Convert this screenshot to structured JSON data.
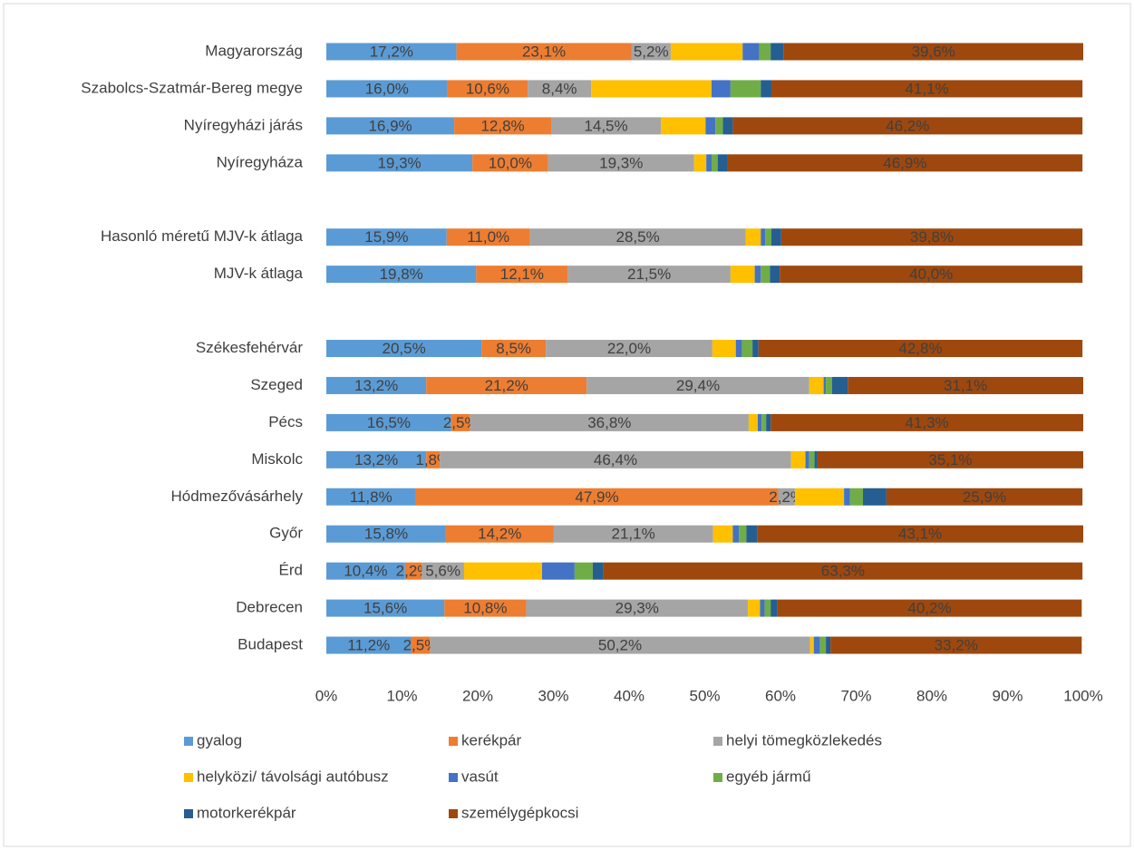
{
  "chart_data": {
    "type": "stacked_barh",
    "categories": [
      "Magyarország",
      "Szabolcs-Szatmár-Bereg megye",
      "Nyíregyházi járás",
      "Nyíregyháza",
      null,
      "Hasonló méretű MJV-k átlaga",
      "MJV-k átlaga",
      null,
      "Székesfehérvár",
      "Szeged",
      "Pécs",
      "Miskolc",
      "Hódmezővásárhely",
      "Győr",
      "Érd",
      "Debrecen",
      "Budapest"
    ],
    "series": [
      {
        "name": "gyalog",
        "color": "#5b9bd5",
        "values": [
          17.2,
          16.0,
          16.9,
          19.3,
          null,
          15.9,
          19.8,
          null,
          20.5,
          13.2,
          16.5,
          13.2,
          11.8,
          15.8,
          10.4,
          15.6,
          11.2
        ],
        "value_labels": [
          "17,2%",
          "16,0%",
          "16,9%",
          "19,3%",
          null,
          "15,9%",
          "19,8%",
          null,
          "20,5%",
          "13,2%",
          "16,5%",
          "13,2%",
          "11,8%",
          "15,8%",
          "10,4%",
          "15,6%",
          "11,2%"
        ]
      },
      {
        "name": "kerékpár",
        "color": "#ed7d31",
        "values": [
          23.1,
          10.6,
          12.8,
          10.0,
          null,
          11.0,
          12.1,
          null,
          8.5,
          21.2,
          2.5,
          1.8,
          47.9,
          14.2,
          2.2,
          10.8,
          2.5
        ],
        "value_labels": [
          "23,1%",
          "10,6%",
          "12,8%",
          "10,0%",
          null,
          "11,0%",
          "12,1%",
          null,
          "8,5%",
          "21,2%",
          "2,5%",
          "1,8%",
          "47,9%",
          "14,2%",
          "2,2%",
          "10,8%",
          "2,5%"
        ]
      },
      {
        "name": "helyi tömegközlekedés",
        "color": "#a5a5a5",
        "values": [
          5.2,
          8.4,
          14.5,
          19.3,
          null,
          28.5,
          21.5,
          null,
          22.0,
          29.4,
          36.8,
          46.4,
          2.2,
          21.1,
          5.6,
          29.3,
          50.2
        ],
        "value_labels": [
          "5,2%",
          "8,4%",
          "14,5%",
          "19,3%",
          null,
          "28,5%",
          "21,5%",
          null,
          "22,0%",
          "29,4%",
          "36,8%",
          "46,4%",
          "2,2%",
          "21,1%",
          "5,6%",
          "29,3%",
          "50,2%"
        ]
      },
      {
        "name": "helyközi/ távolsági autóbusz",
        "color": "#ffc000",
        "values": [
          9.5,
          15.9,
          5.9,
          1.6,
          null,
          2.0,
          3.2,
          null,
          3.1,
          1.9,
          1.2,
          1.9,
          6.5,
          2.6,
          10.3,
          1.6,
          0.5
        ]
      },
      {
        "name": "vasút",
        "color": "#4472c4",
        "values": [
          2.2,
          2.5,
          1.3,
          0.7,
          null,
          0.6,
          0.8,
          null,
          0.8,
          0.3,
          0.5,
          0.5,
          0.8,
          0.8,
          4.3,
          0.6,
          0.8
        ]
      },
      {
        "name": "egyéb jármű",
        "color": "#70ad47",
        "values": [
          1.5,
          4.0,
          1.0,
          0.8,
          null,
          0.8,
          1.2,
          null,
          1.4,
          0.8,
          0.6,
          0.7,
          1.7,
          1.0,
          2.4,
          0.8,
          0.8
        ]
      },
      {
        "name": "motorkerékpár",
        "color": "#255e91",
        "values": [
          1.7,
          1.4,
          1.3,
          1.3,
          null,
          1.3,
          1.3,
          null,
          0.8,
          2.1,
          0.6,
          0.4,
          3.1,
          1.4,
          1.4,
          0.9,
          0.6
        ]
      },
      {
        "name": "személygépkocsi",
        "color": "#9e480e",
        "values": [
          39.6,
          41.1,
          46.2,
          46.9,
          null,
          39.8,
          40.0,
          null,
          42.8,
          31.1,
          41.3,
          35.1,
          25.9,
          43.1,
          63.3,
          40.2,
          33.2
        ],
        "value_labels": [
          "39,6%",
          "41,1%",
          "46,2%",
          "46,9%",
          null,
          "39,8%",
          "40,0%",
          null,
          "42,8%",
          "31,1%",
          "41,3%",
          "35,1%",
          "25,9%",
          "43,1%",
          "63,3%",
          "40,2%",
          "33,2%"
        ]
      }
    ],
    "xlim": [
      0,
      100
    ],
    "xticks": [
      {
        "value": 0,
        "label": "0%"
      },
      {
        "value": 10,
        "label": "10%"
      },
      {
        "value": 20,
        "label": "20%"
      },
      {
        "value": 30,
        "label": "30%"
      },
      {
        "value": 40,
        "label": "40%"
      },
      {
        "value": 50,
        "label": "50%"
      },
      {
        "value": 60,
        "label": "60%"
      },
      {
        "value": 70,
        "label": "70%"
      },
      {
        "value": 80,
        "label": "80%"
      },
      {
        "value": 90,
        "label": "90%"
      },
      {
        "value": 100,
        "label": "100%"
      }
    ],
    "grid": false,
    "legend": "bottom"
  }
}
